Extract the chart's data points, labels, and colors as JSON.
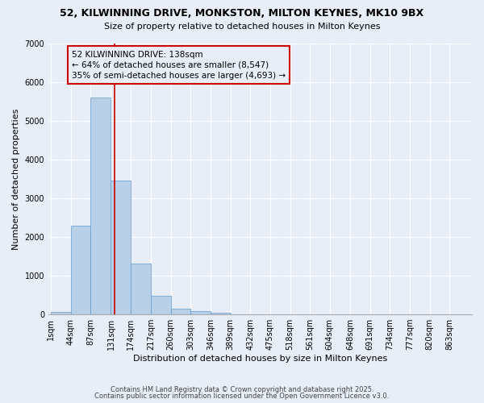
{
  "title": "52, KILWINNING DRIVE, MONKSTON, MILTON KEYNES, MK10 9BX",
  "subtitle": "Size of property relative to detached houses in Milton Keynes",
  "xlabel": "Distribution of detached houses by size in Milton Keynes",
  "ylabel": "Number of detached properties",
  "bins": [
    1,
    44,
    87,
    131,
    174,
    217,
    260,
    303,
    346,
    389,
    432,
    475,
    518,
    561,
    604,
    648,
    691,
    734,
    777,
    820,
    863
  ],
  "bin_labels": [
    "1sqm",
    "44sqm",
    "87sqm",
    "131sqm",
    "174sqm",
    "217sqm",
    "260sqm",
    "303sqm",
    "346sqm",
    "389sqm",
    "432sqm",
    "475sqm",
    "518sqm",
    "561sqm",
    "604sqm",
    "648sqm",
    "691sqm",
    "734sqm",
    "777sqm",
    "820sqm",
    "863sqm"
  ],
  "bar_heights": [
    60,
    2300,
    5600,
    3450,
    1320,
    480,
    155,
    80,
    50,
    5,
    0,
    0,
    0,
    0,
    0,
    0,
    0,
    0,
    0,
    0
  ],
  "bar_color": "#b8cfe8",
  "bar_edge_color": "#6699cc",
  "vline_x": 138,
  "vline_color": "#cc0000",
  "annotation_text": "52 KILWINNING DRIVE: 138sqm\n← 64% of detached houses are smaller (8,547)\n35% of semi-detached houses are larger (4,693) →",
  "annotation_box_color": "#cc0000",
  "ylim": [
    0,
    7000
  ],
  "yticks": [
    0,
    1000,
    2000,
    3000,
    4000,
    5000,
    6000,
    7000
  ],
  "bg_color": "#e8eef8",
  "grid_color": "#ffffff",
  "footer1": "Contains HM Land Registry data © Crown copyright and database right 2025.",
  "footer2": "Contains public sector information licensed under the Open Government Licence v3.0.",
  "title_fontsize": 9,
  "subtitle_fontsize": 8,
  "annotation_fontsize": 7.5,
  "xlabel_fontsize": 8,
  "ylabel_fontsize": 8,
  "tick_fontsize": 7,
  "footer_fontsize": 6
}
